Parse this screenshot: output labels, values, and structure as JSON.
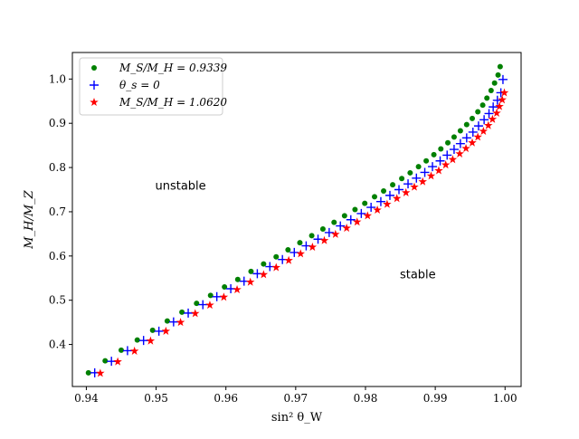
{
  "chart_data": {
    "type": "scatter",
    "xlabel": "sin² θ_W",
    "ylabel": "M_H/M_Z",
    "xlim": [
      0.938,
      1.0023
    ],
    "ylim": [
      0.305,
      1.06
    ],
    "x_ticks": [
      0.94,
      0.95,
      0.96,
      0.97,
      0.98,
      0.99,
      1.0
    ],
    "x_tick_labels": [
      "0.94",
      "0.95",
      "0.96",
      "0.97",
      "0.98",
      "0.99",
      "1.00"
    ],
    "y_ticks": [
      0.4,
      0.5,
      0.6,
      0.7,
      0.8,
      0.9,
      1.0
    ],
    "y_tick_labels": [
      "0.4",
      "0.5",
      "0.6",
      "0.7",
      "0.8",
      "0.9",
      "1.0"
    ],
    "grid": false,
    "legend_position": "top-left",
    "annotations": [
      {
        "text": "unstable",
        "x": 0.9535,
        "y": 0.75
      },
      {
        "text": "stable",
        "x": 0.9875,
        "y": 0.55
      }
    ],
    "series": [
      {
        "name": "M_S/M_H = 0.9339",
        "marker": "circle",
        "color": "#008000",
        "x": [
          0.9403,
          0.9427,
          0.945,
          0.9473,
          0.9495,
          0.9516,
          0.9537,
          0.9558,
          0.9578,
          0.9598,
          0.9617,
          0.9636,
          0.9654,
          0.9672,
          0.9689,
          0.9706,
          0.9723,
          0.9739,
          0.9755,
          0.977,
          0.9785,
          0.9799,
          0.9813,
          0.9826,
          0.9839,
          0.9852,
          0.9864,
          0.9876,
          0.9887,
          0.9898,
          0.9908,
          0.9918,
          0.9927,
          0.9936,
          0.9945,
          0.9953,
          0.9961,
          0.9968,
          0.9974,
          0.998,
          0.9985,
          0.999,
          0.9993
        ],
        "y": [
          0.336,
          0.363,
          0.387,
          0.41,
          0.432,
          0.453,
          0.473,
          0.493,
          0.511,
          0.53,
          0.547,
          0.565,
          0.582,
          0.598,
          0.614,
          0.63,
          0.646,
          0.661,
          0.676,
          0.691,
          0.705,
          0.719,
          0.734,
          0.747,
          0.761,
          0.775,
          0.788,
          0.802,
          0.815,
          0.829,
          0.842,
          0.856,
          0.869,
          0.883,
          0.897,
          0.911,
          0.926,
          0.941,
          0.957,
          0.974,
          0.991,
          1.009,
          1.028
        ]
      },
      {
        "name": "θ_s = 0",
        "marker": "plus",
        "color": "#0000ff",
        "x": [
          0.9412,
          0.9436,
          0.9459,
          0.9482,
          0.9504,
          0.9525,
          0.9546,
          0.9567,
          0.9587,
          0.9607,
          0.9626,
          0.9645,
          0.9663,
          0.9681,
          0.9698,
          0.9715,
          0.9732,
          0.9748,
          0.9764,
          0.9779,
          0.9794,
          0.9808,
          0.9822,
          0.9835,
          0.9848,
          0.9861,
          0.9873,
          0.9885,
          0.9896,
          0.9907,
          0.9917,
          0.9927,
          0.9936,
          0.9945,
          0.9954,
          0.9962,
          0.997,
          0.9977,
          0.9983,
          0.9989,
          0.9994,
          0.9997
        ],
        "y": [
          0.336,
          0.362,
          0.386,
          0.409,
          0.43,
          0.451,
          0.471,
          0.49,
          0.508,
          0.526,
          0.543,
          0.56,
          0.576,
          0.592,
          0.608,
          0.623,
          0.638,
          0.653,
          0.668,
          0.682,
          0.696,
          0.71,
          0.723,
          0.737,
          0.75,
          0.763,
          0.776,
          0.789,
          0.802,
          0.815,
          0.828,
          0.841,
          0.854,
          0.867,
          0.88,
          0.894,
          0.908,
          0.922,
          0.937,
          0.952,
          0.969,
          0.999
        ]
      },
      {
        "name": "M_S/M_H = 1.0620",
        "marker": "star",
        "color": "#ff0000",
        "x": [
          0.942,
          0.9445,
          0.9469,
          0.9492,
          0.9514,
          0.9535,
          0.9556,
          0.9577,
          0.9597,
          0.9616,
          0.9635,
          0.9654,
          0.9672,
          0.969,
          0.9707,
          0.9724,
          0.9741,
          0.9757,
          0.9773,
          0.9788,
          0.9803,
          0.9817,
          0.9831,
          0.9845,
          0.9858,
          0.987,
          0.9882,
          0.9894,
          0.9905,
          0.9915,
          0.9925,
          0.9935,
          0.9944,
          0.9953,
          0.9961,
          0.9969,
          0.9976,
          0.9982,
          0.9988,
          0.9992,
          0.9996,
          0.9999
        ],
        "y": [
          0.335,
          0.361,
          0.385,
          0.408,
          0.43,
          0.45,
          0.47,
          0.489,
          0.507,
          0.524,
          0.541,
          0.558,
          0.574,
          0.59,
          0.605,
          0.62,
          0.635,
          0.649,
          0.663,
          0.677,
          0.691,
          0.704,
          0.717,
          0.73,
          0.743,
          0.756,
          0.768,
          0.781,
          0.793,
          0.806,
          0.818,
          0.831,
          0.843,
          0.856,
          0.869,
          0.882,
          0.895,
          0.909,
          0.923,
          0.938,
          0.953,
          0.969
        ]
      }
    ]
  }
}
